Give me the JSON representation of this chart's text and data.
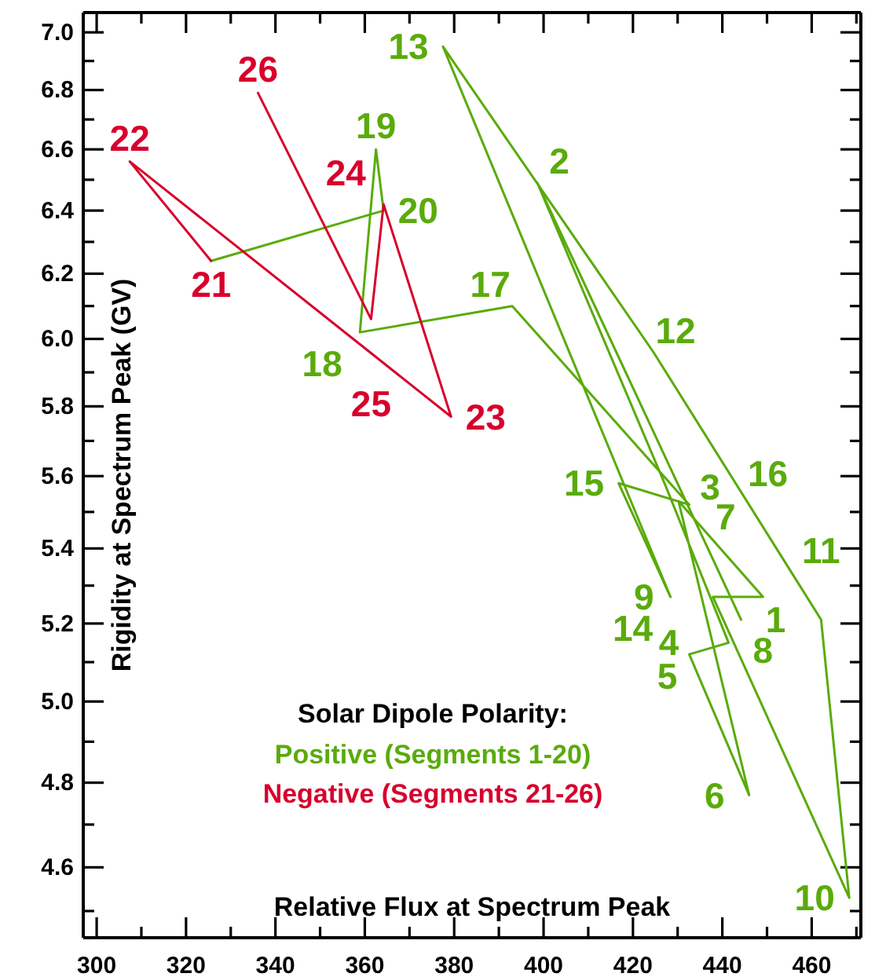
{
  "chart_data": {
    "type": "line",
    "xlabel": "Relative Flux at Spectrum Peak",
    "ylabel": "Rigidity at Spectrum Peak (GV)",
    "legend_title": "Solar Dipole Polarity:",
    "legend": "bottom",
    "log": "y",
    "marker": "none",
    "line_style": "solid",
    "grid": false,
    "xlim": [
      297,
      471
    ],
    "ylim": [
      4.44,
      7.07
    ],
    "xticks": [
      300,
      {
        "value": 310,
        "label": null
      },
      320,
      {
        "value": 330,
        "label": null
      },
      340,
      {
        "value": 350,
        "label": null
      },
      360,
      {
        "value": 370,
        "label": null
      },
      380,
      {
        "value": 390,
        "label": null
      },
      400,
      {
        "value": 410,
        "label": null
      },
      420,
      {
        "value": 430,
        "label": null
      },
      440,
      {
        "value": 450,
        "label": null
      },
      460,
      {
        "value": 470,
        "label": null
      }
    ],
    "yticks": [
      {
        "value": 4.5,
        "label": null
      },
      {
        "value": 4.6,
        "label": "4.6"
      },
      {
        "value": 4.7,
        "label": null
      },
      {
        "value": 4.8,
        "label": "4.8"
      },
      {
        "value": 4.9,
        "label": null
      },
      {
        "value": 5.0,
        "label": "5.0"
      },
      {
        "value": 5.1,
        "label": null
      },
      {
        "value": 5.2,
        "label": "5.2"
      },
      {
        "value": 5.3,
        "label": null
      },
      {
        "value": 5.4,
        "label": "5.4"
      },
      {
        "value": 5.5,
        "label": null
      },
      {
        "value": 5.6,
        "label": "5.6"
      },
      {
        "value": 5.7,
        "label": null
      },
      {
        "value": 5.8,
        "label": "5.8"
      },
      {
        "value": 5.9,
        "label": null
      },
      {
        "value": 6.0,
        "label": "6.0"
      },
      {
        "value": 6.1,
        "label": null
      },
      {
        "value": 6.2,
        "label": "6.2"
      },
      {
        "value": 6.3,
        "label": null
      },
      {
        "value": 6.4,
        "label": "6.4"
      },
      {
        "value": 6.5,
        "label": null
      },
      {
        "value": 6.6,
        "label": "6.6"
      },
      {
        "value": 6.7,
        "label": null
      },
      {
        "value": 6.8,
        "label": "6.8"
      },
      {
        "value": 6.9,
        "label": null
      },
      {
        "value": 7.0,
        "label": "7.0"
      }
    ],
    "series": [
      {
        "name": "Positive (Segments 1-20)",
        "color": "#5aab0b",
        "x": [
          444.2,
          398.6,
          427.4,
          441.4,
          432.6,
          446.0,
          430.2,
          449.1,
          437.9,
          468.4,
          462.1,
          424.6,
          377.5,
          428.4,
          416.8,
          432.6,
          393.0,
          358.9,
          362.5,
          364.2,
          325.6
        ],
        "values": [
          5.21,
          6.49,
          5.57,
          5.15,
          5.12,
          4.77,
          5.53,
          5.27,
          5.27,
          4.53,
          5.21,
          5.96,
          6.95,
          5.27,
          5.58,
          5.52,
          6.1,
          6.02,
          6.6,
          6.4,
          6.24
        ]
      },
      {
        "name": "Negative (Segments 21-26)",
        "color": "#d7002c",
        "x": [
          325.6,
          307.4,
          379.3,
          364.2,
          361.4,
          336.1
        ],
        "values": [
          6.24,
          6.56,
          5.77,
          6.42,
          6.06,
          6.79
        ]
      }
    ],
    "annotations": [
      {
        "text": "1",
        "x": 444.2,
        "y": 5.21
      },
      {
        "text": "2",
        "x": 398.6,
        "y": 6.49
      },
      {
        "text": "3",
        "x": 427.4,
        "y": 5.57
      },
      {
        "text": "4",
        "x": 441.4,
        "y": 5.15
      },
      {
        "text": "5",
        "x": 432.6,
        "y": 5.12
      },
      {
        "text": "6",
        "x": 446.0,
        "y": 4.77
      },
      {
        "text": "7",
        "x": 430.2,
        "y": 5.53
      },
      {
        "text": "8",
        "x": 449.1,
        "y": 5.27
      },
      {
        "text": "9",
        "x": 437.9,
        "y": 5.27
      },
      {
        "text": "10",
        "x": 468.4,
        "y": 4.53
      },
      {
        "text": "11",
        "x": 462.1,
        "y": 5.21
      },
      {
        "text": "12",
        "x": 424.6,
        "y": 5.96
      },
      {
        "text": "13",
        "x": 377.5,
        "y": 6.95
      },
      {
        "text": "14",
        "x": 428.4,
        "y": 5.27
      },
      {
        "text": "15",
        "x": 416.8,
        "y": 5.58
      },
      {
        "text": "16",
        "x": 432.6,
        "y": 5.52
      },
      {
        "text": "17",
        "x": 393.0,
        "y": 6.1
      },
      {
        "text": "18",
        "x": 358.9,
        "y": 6.02
      },
      {
        "text": "19",
        "x": 362.5,
        "y": 6.6
      },
      {
        "text": "20",
        "x": 364.2,
        "y": 6.4
      },
      {
        "text": "21",
        "x": 325.6,
        "y": 6.24
      },
      {
        "text": "22",
        "x": 307.4,
        "y": 6.56
      },
      {
        "text": "23",
        "x": 379.3,
        "y": 5.77
      },
      {
        "text": "24",
        "x": 364.2,
        "y": 6.42
      },
      {
        "text": "25",
        "x": 361.4,
        "y": 6.06
      },
      {
        "text": "26",
        "x": 336.1,
        "y": 6.79
      }
    ]
  }
}
